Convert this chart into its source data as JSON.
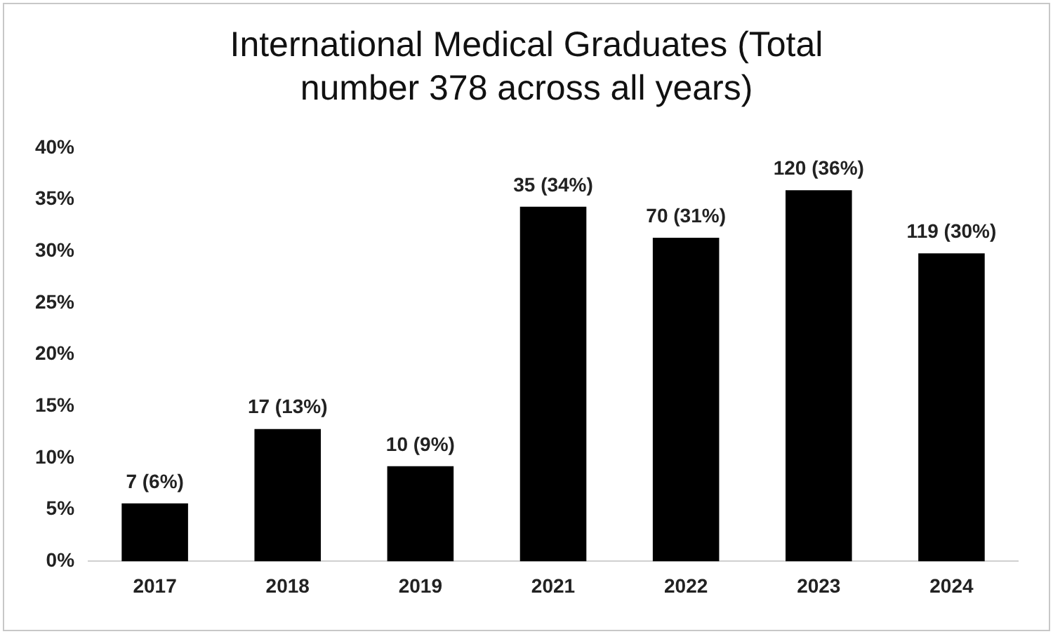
{
  "chart_data": {
    "type": "bar",
    "title": "International Medical Graduates (Total number 378 across all years)",
    "categories": [
      "2017",
      "2018",
      "2019",
      "2021",
      "2022",
      "2023",
      "2024"
    ],
    "values": [
      5.6,
      12.8,
      9.2,
      34.3,
      31.3,
      35.9,
      29.8
    ],
    "value_labels": [
      "7 (6%)",
      "17 (13%)",
      "10 (9%)",
      "35 (34%)",
      "70 (31%)",
      "120 (36%)",
      "119 (30%)"
    ],
    "color": "#000000",
    "ylim": [
      0,
      40
    ],
    "yticks": [
      {
        "value": 0,
        "label": "0%"
      },
      {
        "value": 5,
        "label": "5%"
      },
      {
        "value": 10,
        "label": "10%"
      },
      {
        "value": 15,
        "label": "15%"
      },
      {
        "value": 20,
        "label": "20%"
      },
      {
        "value": 25,
        "label": "25%"
      },
      {
        "value": 30,
        "label": "30%"
      },
      {
        "value": 35,
        "label": "35%"
      },
      {
        "value": 40,
        "label": "40%"
      }
    ],
    "grid": false,
    "legend": false
  }
}
